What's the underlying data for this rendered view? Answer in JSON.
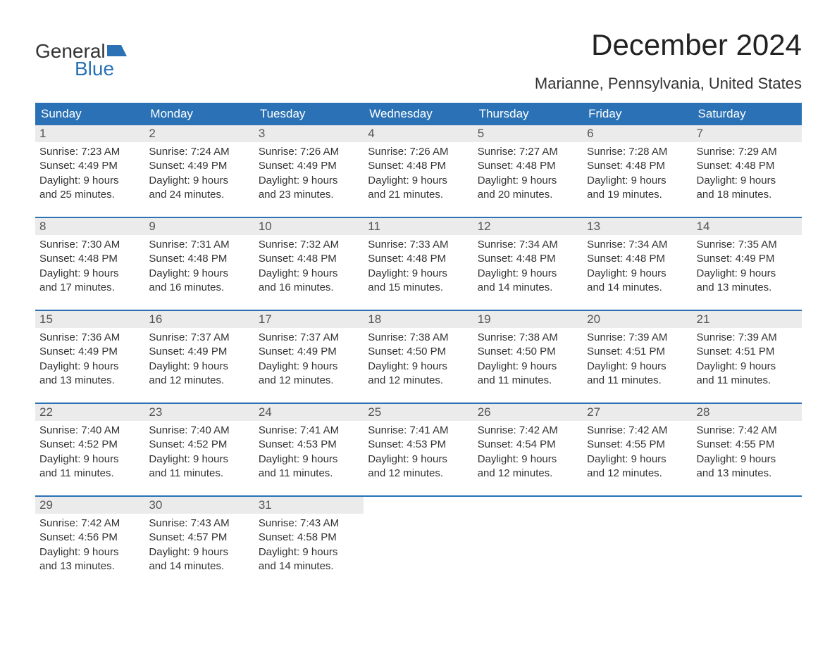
{
  "logo": {
    "text1": "General",
    "text2": "Blue",
    "icon_color": "#2a72b5"
  },
  "title": "December 2024",
  "location": "Marianne, Pennsylvania, United States",
  "colors": {
    "header_bg": "#2a72b5",
    "header_text": "#ffffff",
    "daynum_bg": "#ebebeb",
    "daynum_text": "#555555",
    "body_text": "#333333",
    "week_divider": "#2a72b5",
    "page_bg": "#ffffff"
  },
  "typography": {
    "title_fontsize": 42,
    "location_fontsize": 22,
    "dayhead_fontsize": 17,
    "daynum_fontsize": 17,
    "cell_fontsize": 15,
    "logo_fontsize": 28
  },
  "day_headers": [
    "Sunday",
    "Monday",
    "Tuesday",
    "Wednesday",
    "Thursday",
    "Friday",
    "Saturday"
  ],
  "weeks": [
    [
      {
        "n": "1",
        "sunrise": "Sunrise: 7:23 AM",
        "sunset": "Sunset: 4:49 PM",
        "d1": "Daylight: 9 hours",
        "d2": "and 25 minutes."
      },
      {
        "n": "2",
        "sunrise": "Sunrise: 7:24 AM",
        "sunset": "Sunset: 4:49 PM",
        "d1": "Daylight: 9 hours",
        "d2": "and 24 minutes."
      },
      {
        "n": "3",
        "sunrise": "Sunrise: 7:26 AM",
        "sunset": "Sunset: 4:49 PM",
        "d1": "Daylight: 9 hours",
        "d2": "and 23 minutes."
      },
      {
        "n": "4",
        "sunrise": "Sunrise: 7:26 AM",
        "sunset": "Sunset: 4:48 PM",
        "d1": "Daylight: 9 hours",
        "d2": "and 21 minutes."
      },
      {
        "n": "5",
        "sunrise": "Sunrise: 7:27 AM",
        "sunset": "Sunset: 4:48 PM",
        "d1": "Daylight: 9 hours",
        "d2": "and 20 minutes."
      },
      {
        "n": "6",
        "sunrise": "Sunrise: 7:28 AM",
        "sunset": "Sunset: 4:48 PM",
        "d1": "Daylight: 9 hours",
        "d2": "and 19 minutes."
      },
      {
        "n": "7",
        "sunrise": "Sunrise: 7:29 AM",
        "sunset": "Sunset: 4:48 PM",
        "d1": "Daylight: 9 hours",
        "d2": "and 18 minutes."
      }
    ],
    [
      {
        "n": "8",
        "sunrise": "Sunrise: 7:30 AM",
        "sunset": "Sunset: 4:48 PM",
        "d1": "Daylight: 9 hours",
        "d2": "and 17 minutes."
      },
      {
        "n": "9",
        "sunrise": "Sunrise: 7:31 AM",
        "sunset": "Sunset: 4:48 PM",
        "d1": "Daylight: 9 hours",
        "d2": "and 16 minutes."
      },
      {
        "n": "10",
        "sunrise": "Sunrise: 7:32 AM",
        "sunset": "Sunset: 4:48 PM",
        "d1": "Daylight: 9 hours",
        "d2": "and 16 minutes."
      },
      {
        "n": "11",
        "sunrise": "Sunrise: 7:33 AM",
        "sunset": "Sunset: 4:48 PM",
        "d1": "Daylight: 9 hours",
        "d2": "and 15 minutes."
      },
      {
        "n": "12",
        "sunrise": "Sunrise: 7:34 AM",
        "sunset": "Sunset: 4:48 PM",
        "d1": "Daylight: 9 hours",
        "d2": "and 14 minutes."
      },
      {
        "n": "13",
        "sunrise": "Sunrise: 7:34 AM",
        "sunset": "Sunset: 4:48 PM",
        "d1": "Daylight: 9 hours",
        "d2": "and 14 minutes."
      },
      {
        "n": "14",
        "sunrise": "Sunrise: 7:35 AM",
        "sunset": "Sunset: 4:49 PM",
        "d1": "Daylight: 9 hours",
        "d2": "and 13 minutes."
      }
    ],
    [
      {
        "n": "15",
        "sunrise": "Sunrise: 7:36 AM",
        "sunset": "Sunset: 4:49 PM",
        "d1": "Daylight: 9 hours",
        "d2": "and 13 minutes."
      },
      {
        "n": "16",
        "sunrise": "Sunrise: 7:37 AM",
        "sunset": "Sunset: 4:49 PM",
        "d1": "Daylight: 9 hours",
        "d2": "and 12 minutes."
      },
      {
        "n": "17",
        "sunrise": "Sunrise: 7:37 AM",
        "sunset": "Sunset: 4:49 PM",
        "d1": "Daylight: 9 hours",
        "d2": "and 12 minutes."
      },
      {
        "n": "18",
        "sunrise": "Sunrise: 7:38 AM",
        "sunset": "Sunset: 4:50 PM",
        "d1": "Daylight: 9 hours",
        "d2": "and 12 minutes."
      },
      {
        "n": "19",
        "sunrise": "Sunrise: 7:38 AM",
        "sunset": "Sunset: 4:50 PM",
        "d1": "Daylight: 9 hours",
        "d2": "and 11 minutes."
      },
      {
        "n": "20",
        "sunrise": "Sunrise: 7:39 AM",
        "sunset": "Sunset: 4:51 PM",
        "d1": "Daylight: 9 hours",
        "d2": "and 11 minutes."
      },
      {
        "n": "21",
        "sunrise": "Sunrise: 7:39 AM",
        "sunset": "Sunset: 4:51 PM",
        "d1": "Daylight: 9 hours",
        "d2": "and 11 minutes."
      }
    ],
    [
      {
        "n": "22",
        "sunrise": "Sunrise: 7:40 AM",
        "sunset": "Sunset: 4:52 PM",
        "d1": "Daylight: 9 hours",
        "d2": "and 11 minutes."
      },
      {
        "n": "23",
        "sunrise": "Sunrise: 7:40 AM",
        "sunset": "Sunset: 4:52 PM",
        "d1": "Daylight: 9 hours",
        "d2": "and 11 minutes."
      },
      {
        "n": "24",
        "sunrise": "Sunrise: 7:41 AM",
        "sunset": "Sunset: 4:53 PM",
        "d1": "Daylight: 9 hours",
        "d2": "and 11 minutes."
      },
      {
        "n": "25",
        "sunrise": "Sunrise: 7:41 AM",
        "sunset": "Sunset: 4:53 PM",
        "d1": "Daylight: 9 hours",
        "d2": "and 12 minutes."
      },
      {
        "n": "26",
        "sunrise": "Sunrise: 7:42 AM",
        "sunset": "Sunset: 4:54 PM",
        "d1": "Daylight: 9 hours",
        "d2": "and 12 minutes."
      },
      {
        "n": "27",
        "sunrise": "Sunrise: 7:42 AM",
        "sunset": "Sunset: 4:55 PM",
        "d1": "Daylight: 9 hours",
        "d2": "and 12 minutes."
      },
      {
        "n": "28",
        "sunrise": "Sunrise: 7:42 AM",
        "sunset": "Sunset: 4:55 PM",
        "d1": "Daylight: 9 hours",
        "d2": "and 13 minutes."
      }
    ],
    [
      {
        "n": "29",
        "sunrise": "Sunrise: 7:42 AM",
        "sunset": "Sunset: 4:56 PM",
        "d1": "Daylight: 9 hours",
        "d2": "and 13 minutes."
      },
      {
        "n": "30",
        "sunrise": "Sunrise: 7:43 AM",
        "sunset": "Sunset: 4:57 PM",
        "d1": "Daylight: 9 hours",
        "d2": "and 14 minutes."
      },
      {
        "n": "31",
        "sunrise": "Sunrise: 7:43 AM",
        "sunset": "Sunset: 4:58 PM",
        "d1": "Daylight: 9 hours",
        "d2": "and 14 minutes."
      },
      {
        "empty": true
      },
      {
        "empty": true
      },
      {
        "empty": true
      },
      {
        "empty": true
      }
    ]
  ]
}
